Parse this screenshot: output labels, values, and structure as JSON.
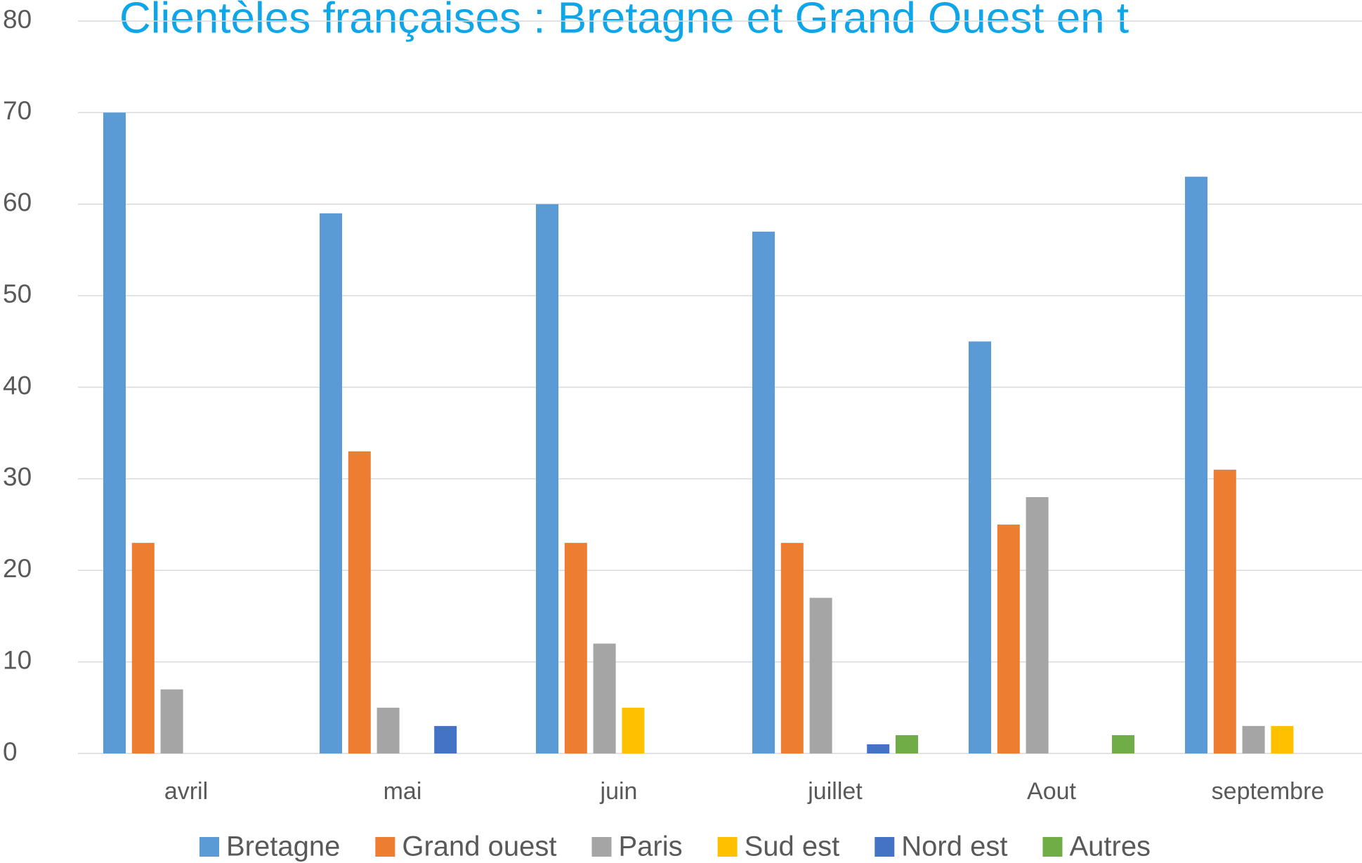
{
  "chart_data": {
    "type": "bar",
    "title": "Clientèles françaises : Bretagne et Grand Ouest en t",
    "categories": [
      "avril",
      "mai",
      "juin",
      "juillet",
      "Aout",
      "septembre"
    ],
    "series": [
      {
        "name": "Bretagne",
        "color": "#5b9bd5",
        "values": [
          70,
          59,
          60,
          57,
          45,
          63
        ]
      },
      {
        "name": "Grand ouest",
        "color": "#ed7d31",
        "values": [
          23,
          33,
          23,
          23,
          25,
          31
        ]
      },
      {
        "name": "Paris",
        "color": "#a5a5a5",
        "values": [
          7,
          5,
          12,
          17,
          28,
          3
        ]
      },
      {
        "name": "Sud est",
        "color": "#ffc000",
        "values": [
          0,
          0,
          5,
          0,
          0,
          3
        ]
      },
      {
        "name": "Nord est",
        "color": "#4472c4",
        "values": [
          0,
          3,
          0,
          1,
          0,
          0
        ]
      },
      {
        "name": "Autres",
        "color": "#70ad47",
        "values": [
          0,
          0,
          0,
          2,
          2,
          0
        ]
      }
    ],
    "ylim": [
      0,
      80
    ],
    "yticks": [
      0,
      10,
      20,
      30,
      40,
      50,
      60,
      70,
      80
    ],
    "grid": true,
    "legend": "bottom"
  }
}
